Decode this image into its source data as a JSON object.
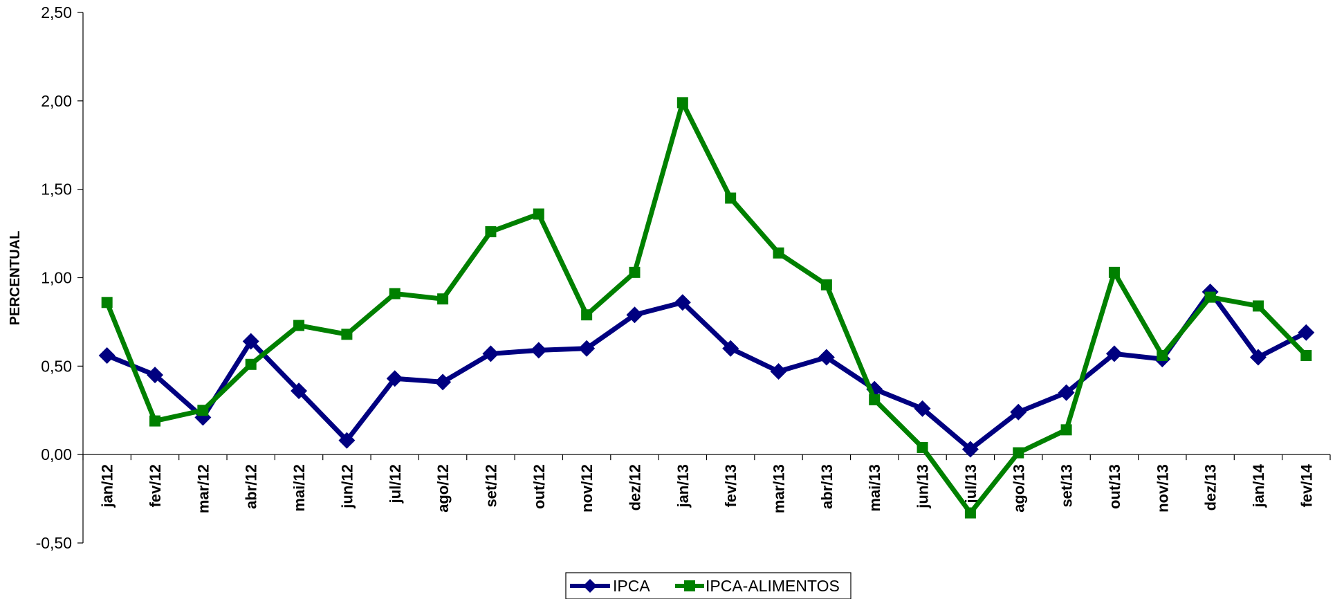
{
  "chart_data": {
    "type": "line",
    "title": "",
    "xlabel": "",
    "ylabel": "PERCENTUAL",
    "categories": [
      "jan/12",
      "fev/12",
      "mar/12",
      "abr/12",
      "mai/12",
      "jun/12",
      "jul/12",
      "ago/12",
      "set/12",
      "out/12",
      "nov/12",
      "dez/12",
      "jan/13",
      "fev/13",
      "mar/13",
      "abr/13",
      "mai/13",
      "jun/13",
      "jul/13",
      "ago/13",
      "set/13",
      "out/13",
      "nov/13",
      "dez/13",
      "jan/14",
      "fev/14"
    ],
    "ylim": [
      -0.5,
      2.5
    ],
    "yticks": [
      -0.5,
      0,
      0.5,
      1.0,
      1.5,
      2.0,
      2.5
    ],
    "ytick_labels": [
      "-0,50",
      "0,00",
      "0,50",
      "1,00",
      "1,50",
      "2,00",
      "2,50"
    ],
    "grid": false,
    "legend_position": "bottom-center",
    "series": [
      {
        "name": "IPCA",
        "color": "#000080",
        "marker": "diamond",
        "values": [
          0.56,
          0.45,
          0.21,
          0.64,
          0.36,
          0.08,
          0.43,
          0.41,
          0.57,
          0.59,
          0.6,
          0.79,
          0.86,
          0.6,
          0.47,
          0.55,
          0.37,
          0.26,
          0.03,
          0.24,
          0.35,
          0.57,
          0.54,
          0.92,
          0.55,
          0.69
        ]
      },
      {
        "name": "IPCA-ALIMENTOS",
        "color": "#008000",
        "marker": "square",
        "values": [
          0.86,
          0.19,
          0.25,
          0.51,
          0.73,
          0.68,
          0.91,
          0.88,
          1.26,
          1.36,
          0.79,
          1.03,
          1.99,
          1.45,
          1.14,
          0.96,
          0.31,
          0.04,
          -0.33,
          0.01,
          0.14,
          1.03,
          0.56,
          0.89,
          0.84,
          0.56
        ]
      }
    ]
  }
}
